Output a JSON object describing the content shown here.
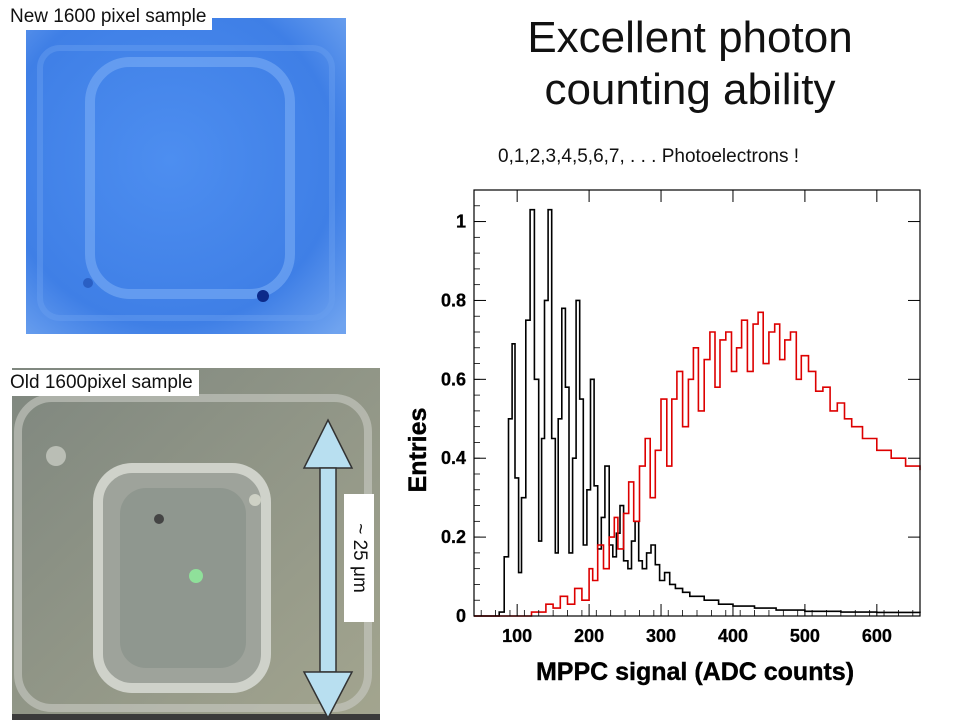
{
  "slide": {
    "title_line1": "Excellent photon",
    "title_line2": "counting ability",
    "caption": "0,1,2,3,4,5,6,7, .   .   . Photoelectrons !"
  },
  "photos": {
    "new_label": "New 1600 pixel sample",
    "old_label": "Old 1600pixel sample",
    "scale_label": "~ 25 μm"
  },
  "colors": {
    "series_black": "#000000",
    "series_red": "#dd0000",
    "new_sample_blue": "#4a86e8"
  },
  "chart_data": {
    "type": "line",
    "title": "",
    "xlabel": "MPPC signal (ADC counts)",
    "ylabel": "Entries",
    "xlim": [
      40,
      660
    ],
    "ylim": [
      0,
      1.08
    ],
    "x_ticks": [
      100,
      200,
      300,
      400,
      500,
      600
    ],
    "x_tick_labels": [
      "100",
      "200",
      "300",
      "400",
      "500",
      "600"
    ],
    "y_ticks": [
      0,
      0.2,
      0.4,
      0.6,
      0.8,
      1
    ],
    "y_tick_labels": [
      "0",
      "0.2",
      "0.4",
      "0.6",
      "0.8",
      "1"
    ],
    "grid": false,
    "legend": "none",
    "series": [
      {
        "color": "#000000",
        "x": [
          40,
          65,
          75,
          82,
          88,
          93,
          97,
          102,
          106,
          112,
          118,
          124,
          130,
          134,
          138,
          143,
          148,
          153,
          157,
          162,
          167,
          172,
          177,
          182,
          187,
          192,
          197,
          202,
          207,
          212,
          217,
          222,
          228,
          233,
          238,
          243,
          248,
          254,
          259,
          264,
          269,
          274,
          280,
          286,
          292,
          298,
          305,
          312,
          320,
          330,
          340,
          360,
          380,
          400,
          430,
          460,
          500,
          550,
          600,
          660
        ],
        "y": [
          0.0,
          0.0,
          0.01,
          0.15,
          0.5,
          0.69,
          0.35,
          0.11,
          0.3,
          0.75,
          1.03,
          0.6,
          0.19,
          0.45,
          0.8,
          1.03,
          0.45,
          0.16,
          0.5,
          0.78,
          0.58,
          0.16,
          0.4,
          0.8,
          0.55,
          0.18,
          0.32,
          0.6,
          0.33,
          0.17,
          0.25,
          0.38,
          0.18,
          0.15,
          0.21,
          0.28,
          0.14,
          0.12,
          0.19,
          0.24,
          0.14,
          0.12,
          0.16,
          0.18,
          0.13,
          0.09,
          0.11,
          0.08,
          0.07,
          0.06,
          0.05,
          0.04,
          0.03,
          0.025,
          0.02,
          0.015,
          0.012,
          0.01,
          0.009,
          0.008
        ]
      },
      {
        "color": "#dd0000",
        "x": [
          40,
          100,
          120,
          140,
          150,
          160,
          170,
          180,
          190,
          200,
          205,
          212,
          220,
          228,
          235,
          240,
          248,
          255,
          262,
          270,
          278,
          285,
          292,
          300,
          308,
          315,
          322,
          330,
          338,
          345,
          352,
          360,
          368,
          375,
          382,
          390,
          398,
          405,
          412,
          420,
          428,
          435,
          442,
          450,
          458,
          465,
          472,
          480,
          488,
          495,
          505,
          515,
          525,
          535,
          545,
          555,
          565,
          580,
          600,
          620,
          640,
          660
        ],
        "y": [
          0.0,
          0.0,
          0.01,
          0.03,
          0.02,
          0.05,
          0.03,
          0.07,
          0.04,
          0.12,
          0.09,
          0.18,
          0.12,
          0.2,
          0.25,
          0.17,
          0.26,
          0.34,
          0.24,
          0.38,
          0.45,
          0.3,
          0.42,
          0.55,
          0.38,
          0.55,
          0.62,
          0.48,
          0.6,
          0.68,
          0.52,
          0.65,
          0.72,
          0.58,
          0.7,
          0.72,
          0.62,
          0.68,
          0.75,
          0.62,
          0.74,
          0.77,
          0.64,
          0.72,
          0.74,
          0.65,
          0.7,
          0.72,
          0.6,
          0.66,
          0.62,
          0.57,
          0.58,
          0.52,
          0.54,
          0.5,
          0.48,
          0.45,
          0.42,
          0.4,
          0.38,
          0.37
        ]
      }
    ]
  }
}
